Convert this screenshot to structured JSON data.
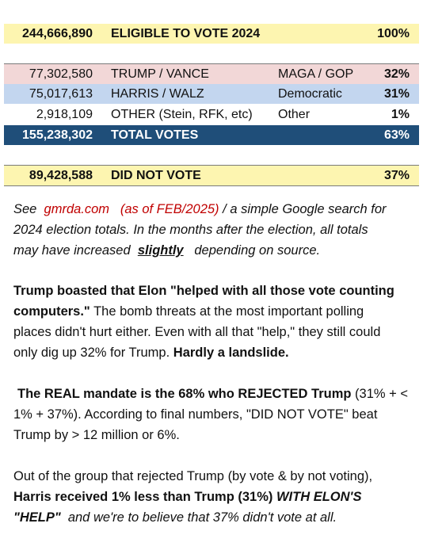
{
  "table": {
    "eligible": {
      "number": "244,666,890",
      "label": "ELIGIBLE TO VOTE 2024",
      "pct": "100%"
    },
    "trump": {
      "number": "77,302,580",
      "label": "TRUMP / VANCE",
      "party": "MAGA / GOP",
      "pct": "32%"
    },
    "harris": {
      "number": "75,017,613",
      "label": "HARRIS / WALZ",
      "party": "Democratic",
      "pct": "31%"
    },
    "other": {
      "number": "2,918,109",
      "label": "OTHER (Stein, RFK, etc)",
      "party": "Other",
      "pct": "1%"
    },
    "total": {
      "number": "155,238,302",
      "label": "TOTAL VOTES",
      "pct": "63%"
    },
    "didnot": {
      "number": "89,428,588",
      "label": "DID NOT VOTE",
      "pct": "37%"
    }
  },
  "note": {
    "see": "See",
    "site": "gmrda.com",
    "asof": "(as of FEB/2025)",
    "rest1": "/ a simple Google search for",
    "line2": "2024 election totals. In the months after the election, all totals",
    "line3a": "may have increased",
    "slightly": "slightly",
    "line3b": "depending on source."
  },
  "para1": {
    "bold1": "Trump boasted that Elon \"helped with all those vote counting",
    "bold2": "computers.\"",
    "text2": "The bomb threats at the most important polling",
    "line3": "places didn't hurt either. Even with all that \"help,\" they still could",
    "text4": "only dig up 32% for Trump.",
    "bold4": "Hardly a landslide."
  },
  "para2": {
    "bold1": "The REAL mandate is the 68% who REJECTED Trump",
    "text1": "(31% + <",
    "line2": "1% + 37%). According to final numbers, \"DID NOT VOTE\" beat",
    "line3": "Trump by > 12 million or 6%."
  },
  "para3": {
    "line1": "Out of the group that rejected Trump (by vote & by not voting),",
    "bold2": "Harris received 1% less than Trump (31%)",
    "bi2": "WITH ELON'S",
    "bi3": "\"HELP\"",
    "it3": "and we're to believe that 37% didn't vote at all."
  },
  "colors": {
    "yellow": "#fdf5b0",
    "pink": "#f2d7d7",
    "blue": "#c3d6ef",
    "navy": "#1f4e79",
    "red": "#c00000"
  }
}
